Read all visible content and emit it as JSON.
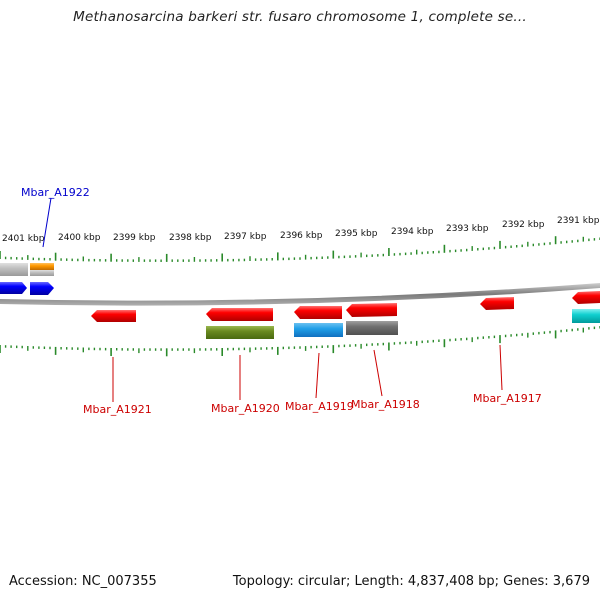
{
  "title": "Methanosarcina barkeri str. fusaro chromosome 1, complete se...",
  "footer": {
    "accession": "Accession: NC_007355",
    "summary": "Topology: circular; Length: 4,837,408 bp; Genes: 3,679"
  },
  "colors": {
    "backbone": "#8a8a8a",
    "tick": "#2a8a2a",
    "label_red": "#cc0000",
    "label_blue": "#0000cc"
  },
  "ticks": [
    "2401 kbp",
    "2400 kbp",
    "2399 kbp",
    "2398 kbp",
    "2397 kbp",
    "2396 kbp",
    "2395 kbp",
    "2394 kbp",
    "2393 kbp",
    "2392 kbp",
    "2391 kbp"
  ],
  "gene_labels": [
    {
      "name": "Mbar_A1922",
      "color": "#0000cc"
    },
    {
      "name": "Mbar_A1921",
      "color": "#cc0000"
    },
    {
      "name": "Mbar_A1920",
      "color": "#cc0000"
    },
    {
      "name": "Mbar_A1919",
      "color": "#cc0000"
    },
    {
      "name": "Mbar_A1918",
      "color": "#cc0000"
    },
    {
      "name": "Mbar_A1917",
      "color": "#cc0000"
    }
  ]
}
